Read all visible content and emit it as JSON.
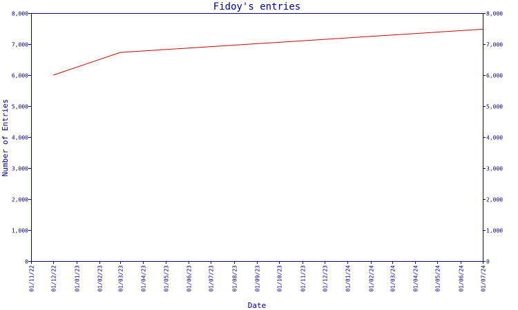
{
  "chart_data": {
    "type": "line",
    "title": "Fidoy's entries",
    "xlabel": "Date",
    "ylabel": "Number of Entries",
    "ylim": [
      0,
      8000
    ],
    "y_ticks": [
      "0",
      "1,000",
      "2,000",
      "3,000",
      "4,000",
      "5,000",
      "6,000",
      "7,000",
      "8,000"
    ],
    "x_ticks": [
      "01/11/22",
      "01/12/22",
      "01/01/23",
      "01/02/23",
      "01/03/23",
      "01/04/23",
      "01/05/23",
      "01/06/23",
      "01/07/23",
      "01/08/23",
      "01/09/23",
      "01/10/23",
      "01/11/23",
      "01/12/23",
      "01/01/24",
      "01/02/24",
      "01/03/24",
      "01/04/24",
      "01/05/24",
      "01/06/24",
      "01/07/24"
    ],
    "x_range": [
      "01/11/22",
      "01/07/24"
    ],
    "grid": false,
    "colors": {
      "axes": "#000080",
      "line": "#cc0000"
    },
    "series": [
      {
        "x": [
          "2022-12-01",
          "2023-03-01",
          "2024-07-01"
        ],
        "values": [
          6000,
          6730,
          7480
        ]
      }
    ]
  }
}
